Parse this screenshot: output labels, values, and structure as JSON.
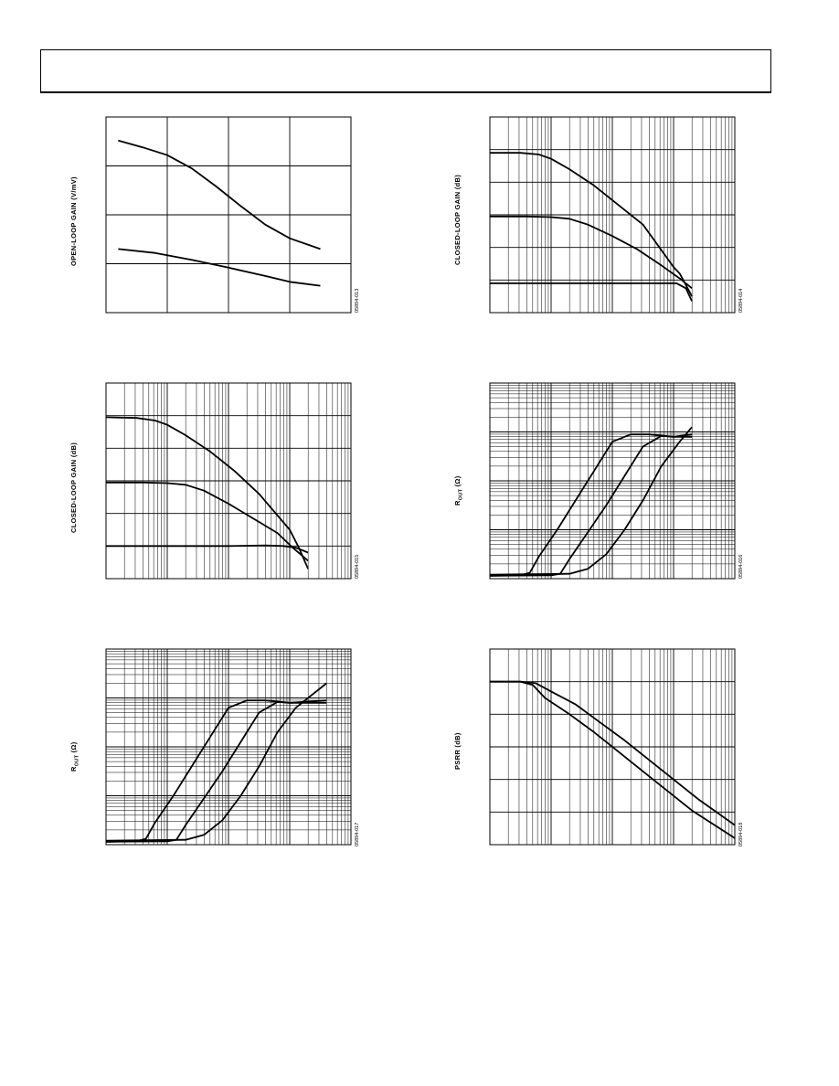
{
  "page": {
    "header_text": ""
  },
  "chart_data": [
    {
      "id": "c1",
      "type": "line",
      "title": "",
      "xlabel": "",
      "ylabel": "OPEN-LOOP GAIN (V/mV)",
      "figure_id": "05894-013",
      "xscale": "linear",
      "yscale": "linear",
      "xlim": [
        0,
        4
      ],
      "ylim": [
        0,
        4
      ],
      "xgrid_div": 4,
      "ygrid_div": 4,
      "minor_grid": false,
      "series": [
        {
          "x": [
            0.2,
            0.6,
            1.0,
            1.4,
            1.8,
            2.2,
            2.6,
            3.0,
            3.5
          ],
          "y": [
            3.52,
            3.38,
            3.22,
            2.95,
            2.58,
            2.18,
            1.8,
            1.52,
            1.3
          ]
        },
        {
          "x": [
            0.2,
            0.8,
            1.4,
            2.0,
            2.6,
            3.0,
            3.5
          ],
          "y": [
            1.3,
            1.22,
            1.08,
            0.92,
            0.75,
            0.63,
            0.55
          ]
        }
      ]
    },
    {
      "id": "c2",
      "type": "line",
      "title": "",
      "xlabel": "",
      "ylabel": "CLOSED-LOOP GAIN (dB)",
      "figure_id": "05894-014",
      "xscale": "log",
      "yscale": "linear",
      "xlim": [
        0,
        4
      ],
      "ylim": [
        0,
        6
      ],
      "xgrid_div": 4,
      "ygrid_div": 6,
      "minor_grid": true,
      "series": [
        {
          "x": [
            0,
            0.5,
            0.8,
            1.0,
            1.3,
            1.7,
            2.1,
            2.5,
            3.0,
            3.1,
            3.3
          ],
          "y": [
            4.9,
            4.9,
            4.85,
            4.72,
            4.4,
            3.9,
            3.3,
            2.7,
            1.4,
            1.2,
            0.5
          ]
        },
        {
          "x": [
            0,
            0.6,
            1.0,
            1.3,
            1.6,
            2.0,
            2.4,
            2.8,
            3.1,
            3.3
          ],
          "y": [
            2.95,
            2.95,
            2.93,
            2.88,
            2.7,
            2.35,
            1.95,
            1.45,
            1.05,
            0.75
          ]
        },
        {
          "x": [
            0,
            1.0,
            2.0,
            2.8,
            3.05,
            3.2,
            3.3
          ],
          "y": [
            0.9,
            0.9,
            0.9,
            0.9,
            0.9,
            0.75,
            0.35
          ]
        }
      ]
    },
    {
      "id": "c3",
      "type": "line",
      "title": "",
      "xlabel": "",
      "ylabel": "CLOSED-LOOP GAIN (dB)",
      "figure_id": "05894-015",
      "xscale": "log",
      "yscale": "linear",
      "xlim": [
        0,
        4
      ],
      "ylim": [
        0,
        6
      ],
      "xgrid_div": 4,
      "ygrid_div": 6,
      "minor_grid": true,
      "series": [
        {
          "x": [
            0,
            0.5,
            0.8,
            1.0,
            1.3,
            1.7,
            2.1,
            2.5,
            3.0,
            3.15,
            3.3
          ],
          "y": [
            4.95,
            4.93,
            4.85,
            4.72,
            4.4,
            3.9,
            3.3,
            2.6,
            1.5,
            0.95,
            0.3
          ]
        },
        {
          "x": [
            0,
            0.6,
            1.0,
            1.3,
            1.6,
            2.0,
            2.4,
            2.8,
            3.05,
            3.3
          ],
          "y": [
            2.95,
            2.95,
            2.93,
            2.88,
            2.7,
            2.3,
            1.85,
            1.4,
            0.95,
            0.55
          ]
        },
        {
          "x": [
            0,
            1.0,
            2.0,
            2.6,
            2.9,
            3.1,
            3.3
          ],
          "y": [
            1.0,
            1.0,
            1.0,
            1.02,
            1.0,
            0.95,
            0.8
          ]
        }
      ]
    },
    {
      "id": "c4",
      "type": "line",
      "title": "",
      "xlabel": "",
      "ylabel": "ROUT (Ω)",
      "ylabel_main": "R",
      "ylabel_sub": "OUT",
      "ylabel_unit": " (Ω)",
      "figure_id": "05894-016",
      "xscale": "log",
      "yscale": "log",
      "xlim": [
        0,
        4
      ],
      "ylim": [
        0,
        4
      ],
      "xgrid_div": 4,
      "ygrid_div": 4,
      "minor_grid": true,
      "series": [
        {
          "x": [
            0,
            0.5,
            0.65,
            0.8,
            1.1,
            1.4,
            1.7,
            2.0,
            2.3,
            2.6,
            3.0,
            3.3
          ],
          "y": [
            0.06,
            0.07,
            0.12,
            0.45,
            1.0,
            1.6,
            2.2,
            2.8,
            2.95,
            2.95,
            2.9,
            2.9
          ]
        },
        {
          "x": [
            0,
            1.0,
            1.15,
            1.3,
            1.6,
            1.9,
            2.2,
            2.5,
            2.8,
            3.0,
            3.3
          ],
          "y": [
            0.06,
            0.07,
            0.1,
            0.4,
            0.95,
            1.5,
            2.1,
            2.7,
            2.92,
            2.9,
            2.95
          ]
        },
        {
          "x": [
            0,
            1.3,
            1.6,
            1.9,
            2.2,
            2.5,
            2.8,
            3.1,
            3.3
          ],
          "y": [
            0.08,
            0.1,
            0.2,
            0.5,
            1.0,
            1.6,
            2.3,
            2.8,
            3.1
          ]
        }
      ]
    },
    {
      "id": "c5",
      "type": "line",
      "title": "",
      "xlabel": "",
      "ylabel": "ROUT (Ω)",
      "ylabel_main": "R",
      "ylabel_sub": "OUT",
      "ylabel_unit": " (Ω)",
      "figure_id": "05894-017",
      "xscale": "log",
      "yscale": "log",
      "xlim": [
        0,
        4
      ],
      "ylim": [
        0,
        4
      ],
      "xgrid_div": 4,
      "ygrid_div": 4,
      "minor_grid": true,
      "series": [
        {
          "x": [
            0,
            0.5,
            0.65,
            0.8,
            1.1,
            1.4,
            1.7,
            2.0,
            2.3,
            2.6,
            3.0,
            3.6
          ],
          "y": [
            0.06,
            0.07,
            0.12,
            0.45,
            1.0,
            1.6,
            2.2,
            2.8,
            2.95,
            2.95,
            2.9,
            2.9
          ]
        },
        {
          "x": [
            0,
            1.0,
            1.15,
            1.3,
            1.6,
            1.9,
            2.2,
            2.5,
            2.8,
            3.0,
            3.6
          ],
          "y": [
            0.06,
            0.07,
            0.1,
            0.4,
            0.95,
            1.5,
            2.1,
            2.7,
            2.92,
            2.9,
            2.95
          ]
        },
        {
          "x": [
            0,
            1.3,
            1.6,
            1.9,
            2.2,
            2.5,
            2.8,
            3.1,
            3.6
          ],
          "y": [
            0.08,
            0.1,
            0.2,
            0.5,
            1.0,
            1.6,
            2.3,
            2.8,
            3.3
          ]
        }
      ]
    },
    {
      "id": "c6",
      "type": "line",
      "title": "",
      "xlabel": "",
      "ylabel": "PSRR (dB)",
      "figure_id": "05894-018",
      "xscale": "log",
      "yscale": "linear",
      "xlim": [
        0,
        4
      ],
      "ylim": [
        0,
        6
      ],
      "xgrid_div": 4,
      "ygrid_div": 6,
      "minor_grid": true,
      "series": [
        {
          "x": [
            0,
            0.5,
            0.75,
            1.0,
            1.4,
            1.8,
            2.2,
            2.6,
            3.0,
            3.4,
            4.0
          ],
          "y": [
            5.0,
            5.0,
            4.95,
            4.7,
            4.3,
            3.75,
            3.2,
            2.6,
            2.0,
            1.4,
            0.6
          ]
        },
        {
          "x": [
            0,
            0.5,
            0.7,
            0.9,
            1.3,
            1.7,
            2.1,
            2.5,
            2.9,
            3.3,
            4.0
          ],
          "y": [
            5.0,
            5.0,
            4.9,
            4.5,
            4.0,
            3.45,
            2.85,
            2.25,
            1.65,
            1.05,
            0.2
          ]
        }
      ]
    }
  ]
}
